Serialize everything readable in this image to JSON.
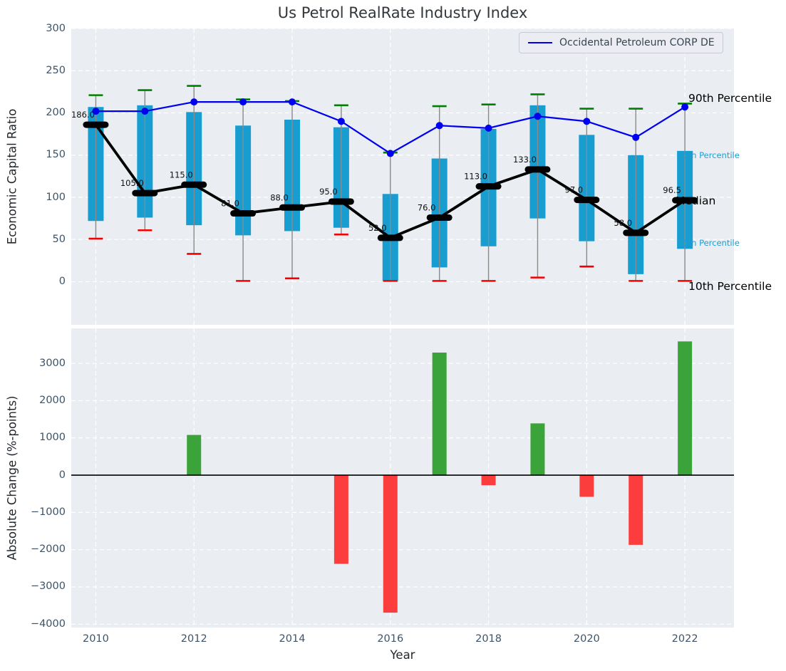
{
  "title": "Us Petrol RealRate Industry Index",
  "legend": {
    "label": "Occidental Petroleum CORP DE"
  },
  "percentile_labels": {
    "p90": "90th Percentile",
    "p75": "75th Percentile",
    "median": "Median",
    "p25": "25th Percentile",
    "p10": "10th Percentile"
  },
  "colors": {
    "axes_background": "#eaedf1",
    "grid": "#ffffff",
    "box_fill": "#189dd1",
    "p90_cap": "#008000",
    "p10_cap": "#f30000",
    "whisker": "#8a8a8a",
    "median": "#000000",
    "occidental_line": "#0000f0",
    "positive_bar": "#3aa33a",
    "negative_bar": "#fb3d3d",
    "tick_label": "#3d5468",
    "cyan_label": "#1a9fd4"
  },
  "chart_data": [
    {
      "type": "box-percentile-line",
      "title": "Us Petrol RealRate Industry Index",
      "ylabel": "Economic Capital Ratio",
      "x": [
        2010,
        2011,
        2012,
        2013,
        2014,
        2015,
        2016,
        2017,
        2018,
        2019,
        2020,
        2021,
        2022
      ],
      "xticks": [
        2010,
        2012,
        2014,
        2016,
        2018,
        2020,
        2022
      ],
      "yticks": [
        300,
        250,
        200,
        150,
        100,
        50,
        0
      ],
      "ylim": [
        -51,
        300
      ],
      "xlim": [
        2009.5,
        2023.0
      ],
      "grid": true,
      "legend_position": "upper right",
      "series": [
        {
          "name": "Median",
          "values": [
            186,
            105,
            115,
            81,
            88,
            95,
            52,
            76,
            113,
            133,
            97,
            58,
            96.5
          ],
          "labels": [
            "186.0",
            "105.0",
            "115.0",
            "81.0",
            "88.0",
            "95.0",
            "52.0",
            "76.0",
            "113.0",
            "133.0",
            "97.0",
            "58.0",
            "96.5"
          ]
        },
        {
          "name": "75th Percentile",
          "values": [
            207,
            209,
            201,
            185,
            192,
            183,
            104,
            146,
            181,
            209,
            174,
            150,
            155
          ]
        },
        {
          "name": "25th Percentile",
          "values": [
            72,
            76,
            67,
            55,
            60,
            64,
            1,
            17,
            42,
            75,
            48,
            9,
            39
          ]
        },
        {
          "name": "90th Percentile",
          "values": [
            221,
            227,
            232,
            216,
            214,
            209,
            153,
            208,
            210,
            222,
            205,
            205,
            211
          ]
        },
        {
          "name": "10th Percentile",
          "values": [
            51,
            61,
            33,
            1,
            4,
            56,
            1,
            1,
            1,
            5,
            18,
            1,
            1
          ]
        },
        {
          "name": "Occidental Petroleum CORP DE",
          "values": [
            202,
            202,
            213,
            213,
            213,
            190,
            152,
            185,
            182,
            196,
            190,
            171,
            207
          ]
        }
      ]
    },
    {
      "type": "bar",
      "ylabel": "Absolute Change (%-points)",
      "xlabel": "Year",
      "x": [
        2010,
        2011,
        2012,
        2013,
        2014,
        2015,
        2016,
        2017,
        2018,
        2019,
        2020,
        2021,
        2022
      ],
      "values": [
        0,
        0,
        1080,
        0,
        0,
        -2380,
        -3690,
        3290,
        -270,
        1390,
        -580,
        -1870,
        3590
      ],
      "xticks": [
        2010,
        2012,
        2014,
        2016,
        2018,
        2020,
        2022
      ],
      "yticks": [
        3000,
        2000,
        1000,
        0,
        -1000,
        -2000,
        -3000,
        -4000
      ],
      "ylim": [
        -4090,
        3940
      ],
      "xlim": [
        2009.5,
        2023.0
      ],
      "grid": true
    }
  ]
}
